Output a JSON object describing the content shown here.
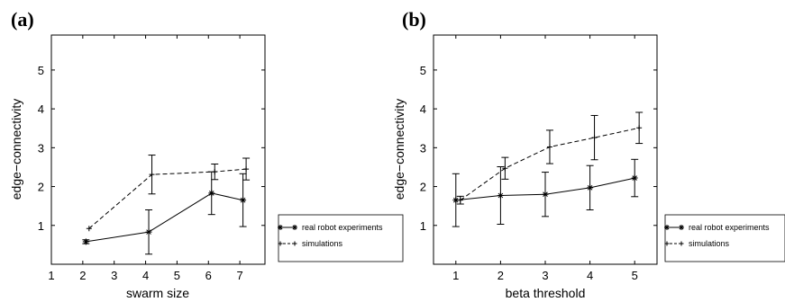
{
  "chart_data": [
    {
      "type": "line",
      "panel_label": "(a)",
      "xlabel": "swarm size",
      "ylabel": "edge−connectivity",
      "xlim": [
        1,
        7.8
      ],
      "ylim": [
        0,
        5.9
      ],
      "xticks": [
        1,
        2,
        3,
        4,
        5,
        6,
        7
      ],
      "yticks": [
        1,
        2,
        3,
        4,
        5
      ],
      "legend_position": "outside-right",
      "series": [
        {
          "name": "real robot experiments",
          "style": "solid",
          "marker": "star",
          "x": [
            2.1,
            4.1,
            6.1,
            7.1
          ],
          "y": [
            0.58,
            0.83,
            1.83,
            1.65
          ],
          "err": [
            0.05,
            0.57,
            0.55,
            0.68
          ]
        },
        {
          "name": "simulations",
          "style": "dashed",
          "marker": "plus",
          "x": [
            2.2,
            4.2,
            6.2,
            7.2
          ],
          "y": [
            0.92,
            2.31,
            2.38,
            2.45
          ],
          "err": [
            0.0,
            0.5,
            0.2,
            0.28
          ]
        }
      ]
    },
    {
      "type": "line",
      "panel_label": "(b)",
      "xlabel": "beta threshold",
      "ylabel": "edge−connectivity",
      "xlim": [
        0.5,
        5.5
      ],
      "ylim": [
        0,
        5.9
      ],
      "xticks": [
        1,
        2,
        3,
        4,
        5
      ],
      "yticks": [
        1,
        2,
        3,
        4,
        5
      ],
      "legend_position": "outside-right",
      "series": [
        {
          "name": "real robot experiments",
          "style": "solid",
          "marker": "star",
          "x": [
            1.0,
            2.0,
            3.0,
            4.0,
            5.0
          ],
          "y": [
            1.65,
            1.77,
            1.8,
            1.97,
            2.22
          ],
          "err": [
            0.68,
            0.74,
            0.57,
            0.57,
            0.48
          ]
        },
        {
          "name": "simulations",
          "style": "dashed",
          "marker": "plus",
          "x": [
            1.1,
            2.1,
            3.1,
            4.1,
            5.1
          ],
          "y": [
            1.65,
            2.47,
            3.02,
            3.26,
            3.51
          ],
          "err": [
            0.1,
            0.28,
            0.43,
            0.57,
            0.4
          ]
        }
      ]
    }
  ]
}
